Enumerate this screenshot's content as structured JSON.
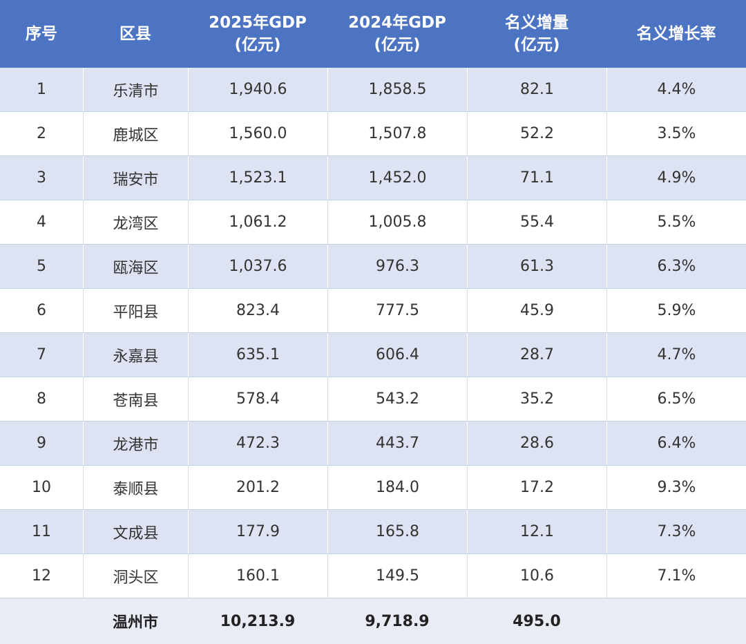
{
  "table": {
    "headers": [
      [
        "序号"
      ],
      [
        "区县"
      ],
      [
        "2025年GDP",
        "(亿元)"
      ],
      [
        "2024年GDP",
        "(亿元)"
      ],
      [
        "名义增量",
        "(亿元)"
      ],
      [
        "名义增长率"
      ]
    ],
    "rows": [
      [
        "1",
        "乐清市",
        "1,940.6",
        "1,858.5",
        "82.1",
        "4.4%"
      ],
      [
        "2",
        "鹿城区",
        "1,560.0",
        "1,507.8",
        "52.2",
        "3.5%"
      ],
      [
        "3",
        "瑞安市",
        "1,523.1",
        "1,452.0",
        "71.1",
        "4.9%"
      ],
      [
        "4",
        "龙湾区",
        "1,061.2",
        "1,005.8",
        "55.4",
        "5.5%"
      ],
      [
        "5",
        "瓯海区",
        "1,037.6",
        "976.3",
        "61.3",
        "6.3%"
      ],
      [
        "6",
        "平阳县",
        "823.4",
        "777.5",
        "45.9",
        "5.9%"
      ],
      [
        "7",
        "永嘉县",
        "635.1",
        "606.4",
        "28.7",
        "4.7%"
      ],
      [
        "8",
        "苍南县",
        "578.4",
        "543.2",
        "35.2",
        "6.5%"
      ],
      [
        "9",
        "龙港市",
        "472.3",
        "443.7",
        "28.6",
        "6.4%"
      ],
      [
        "10",
        "泰顺县",
        "201.2",
        "184.0",
        "17.2",
        "9.3%"
      ],
      [
        "11",
        "文成县",
        "177.9",
        "165.8",
        "12.1",
        "7.3%"
      ],
      [
        "12",
        "洞头区",
        "160.1",
        "149.5",
        "10.6",
        "7.1%"
      ]
    ],
    "total": {
      "label": "温州市",
      "values": [
        "10,213.9",
        "9,718.9",
        "495.0"
      ]
    }
  }
}
